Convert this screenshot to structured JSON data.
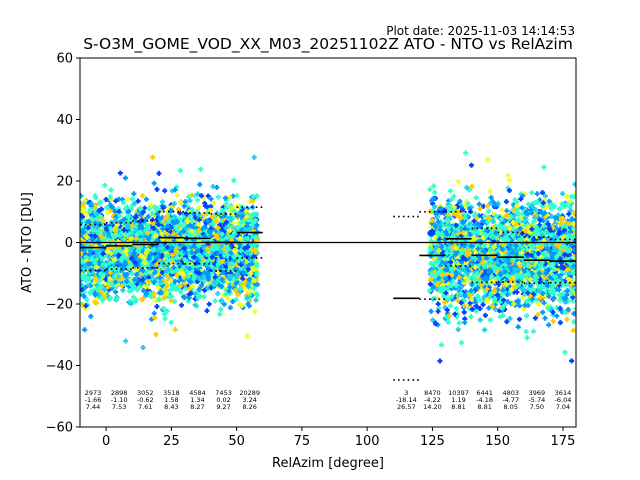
{
  "chart_data": {
    "type": "scatter",
    "title": "S-O3M_GOME_VOD_XX_M03_20251102Z ATO - NTO vs RelAzim",
    "subtitle": "Plot date: 2025-11-03 14:14:53",
    "xlabel": "RelAzim [degree]",
    "ylabel": "ATO - NTO [DU]",
    "xlim": [
      -10,
      180
    ],
    "ylim": [
      -60,
      60
    ],
    "xticks": [
      0,
      25,
      50,
      75,
      100,
      125,
      150,
      175
    ],
    "yticks": [
      -60,
      -40,
      -20,
      0,
      20,
      40,
      60
    ],
    "xtick_labels": [
      "0",
      "25",
      "50",
      "75",
      "100",
      "125",
      "150",
      "175"
    ],
    "ytick_labels": [
      "−60",
      "−40",
      "−20",
      "0",
      "20",
      "40",
      "60"
    ],
    "grid": false,
    "zero_line": 0,
    "colors": {
      "blue": "#0040ff",
      "sky": "#0099ff",
      "aqua": "#33ffcc",
      "cyan": "#22ccee",
      "yellow": "#eeff22",
      "gold": "#ffcc00",
      "navy": "#0000cc"
    },
    "point_clouds": [
      {
        "x0": -10,
        "x1": 58,
        "ymin": -25,
        "ymax": 20
      },
      {
        "x0": 124,
        "x1": 180,
        "ymin": -30,
        "ymax": 22
      }
    ],
    "bins": [
      {
        "x0": -10,
        "x1": 0,
        "count": "2973",
        "mean": "-1.66",
        "std": "7.44",
        "mean_val": -1.66,
        "std_val": 7.44
      },
      {
        "x0": 0,
        "x1": 10,
        "count": "2898",
        "mean": "-1.10",
        "std": "7.53",
        "mean_val": -1.1,
        "std_val": 7.53
      },
      {
        "x0": 10,
        "x1": 20,
        "count": "3052",
        "mean": "-0.62",
        "std": "7.61",
        "mean_val": -0.62,
        "std_val": 7.61
      },
      {
        "x0": 20,
        "x1": 30,
        "count": "3518",
        "mean": "1.58",
        "std": "8.43",
        "mean_val": 1.58,
        "std_val": 8.43
      },
      {
        "x0": 30,
        "x1": 40,
        "count": "4584",
        "mean": "1.34",
        "std": "8.27",
        "mean_val": 1.34,
        "std_val": 8.27
      },
      {
        "x0": 40,
        "x1": 50,
        "count": "7453",
        "mean": "0.02",
        "std": "9.27",
        "mean_val": 0.02,
        "std_val": 9.27
      },
      {
        "x0": 50,
        "x1": 60,
        "count": "20289",
        "mean": "3.24",
        "std": "8.26",
        "mean_val": 3.24,
        "std_val": 8.26
      },
      {
        "x0": 110,
        "x1": 120,
        "count": "3",
        "mean": "-18.14",
        "std": "26.57",
        "mean_val": -18.14,
        "std_val": 26.57
      },
      {
        "x0": 120,
        "x1": 130,
        "count": "8470",
        "mean": "-4.22",
        "std": "14.20",
        "mean_val": -4.22,
        "std_val": 14.2
      },
      {
        "x0": 130,
        "x1": 140,
        "count": "10397",
        "mean": "1.19",
        "std": "8.81",
        "mean_val": 1.19,
        "std_val": 8.81
      },
      {
        "x0": 140,
        "x1": 150,
        "count": "6441",
        "mean": "-4.18",
        "std": "8.81",
        "mean_val": -4.18,
        "std_val": 8.81
      },
      {
        "x0": 150,
        "x1": 160,
        "count": "4803",
        "mean": "-4.77",
        "std": "8.05",
        "mean_val": -4.77,
        "std_val": 8.05
      },
      {
        "x0": 160,
        "x1": 170,
        "count": "3969",
        "mean": "-5.74",
        "std": "7.50",
        "mean_val": -5.74,
        "std_val": 7.5
      },
      {
        "x0": 170,
        "x1": 180,
        "count": "3614",
        "mean": "-6.04",
        "std": "7.04",
        "mean_val": -6.04,
        "std_val": 7.04
      }
    ]
  }
}
